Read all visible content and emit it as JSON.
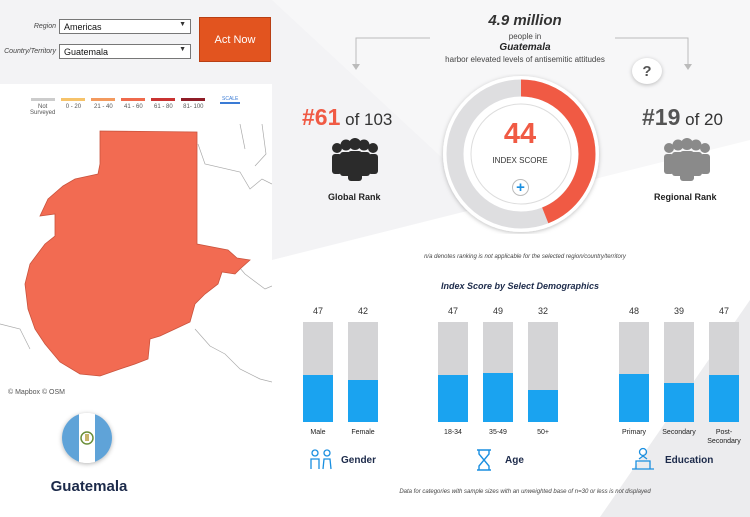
{
  "controls": {
    "region_label": "Region",
    "region_value": "Americas",
    "country_label": "Country/Territory",
    "country_value": "Guatemala",
    "act_button": "Act Now"
  },
  "legend": [
    {
      "label": "Not\nSurveyed",
      "color": "#cccccc"
    },
    {
      "label": "0 - 20",
      "color": "#f6c36a"
    },
    {
      "label": "21 - 40",
      "color": "#f39a5e"
    },
    {
      "label": "41 - 60",
      "color": "#ef6a4c"
    },
    {
      "label": "61 - 80",
      "color": "#c93331"
    },
    {
      "label": "81- 100",
      "color": "#8f1d27"
    }
  ],
  "legend_scale_label": "SCALE",
  "map": {
    "credit": "© Mapbox © OSM",
    "country_fill": "#f26b52",
    "country_name": "Guatemala",
    "flag_colors": [
      "#5fa3d8",
      "#ffffff",
      "#5fa3d8"
    ]
  },
  "summary": {
    "population": "4.9 million",
    "line1": "people in",
    "country": "Guatemala",
    "line3": "harbor elevated levels of antisemitic attitudes"
  },
  "global_rank": {
    "rank": "#61",
    "of_text": "of 103",
    "label": "Global Rank",
    "color": "#f05a44"
  },
  "regional_rank": {
    "rank": "#19",
    "of_text": "of 20",
    "label": "Regional Rank",
    "color": "#555555"
  },
  "index_score": {
    "value": "44",
    "fraction": 0.44,
    "label": "INDEX SCORE",
    "plus": "+"
  },
  "question_mark": "?",
  "na_note": "n/a denotes ranking is not applicable for the selected region/country/territory",
  "demographics_title": "Index Score by Select Demographics",
  "chart_data": {
    "type": "bar",
    "title": "Index Score by Select Demographics",
    "ylim": [
      0,
      100
    ],
    "groups": [
      {
        "name": "Gender",
        "categories": [
          "Male",
          "Female"
        ],
        "values": [
          47,
          42
        ]
      },
      {
        "name": "Age",
        "categories": [
          "18-34",
          "35-49",
          "50+"
        ],
        "values": [
          47,
          49,
          32
        ]
      },
      {
        "name": "Education",
        "categories": [
          "Primary",
          "Secondary",
          "Post-\nSecondary"
        ],
        "values": [
          48,
          39,
          47
        ]
      }
    ]
  },
  "footer_note": "Data for categories with sample sizes with an unweighted base of n=30 or less is not displayed"
}
